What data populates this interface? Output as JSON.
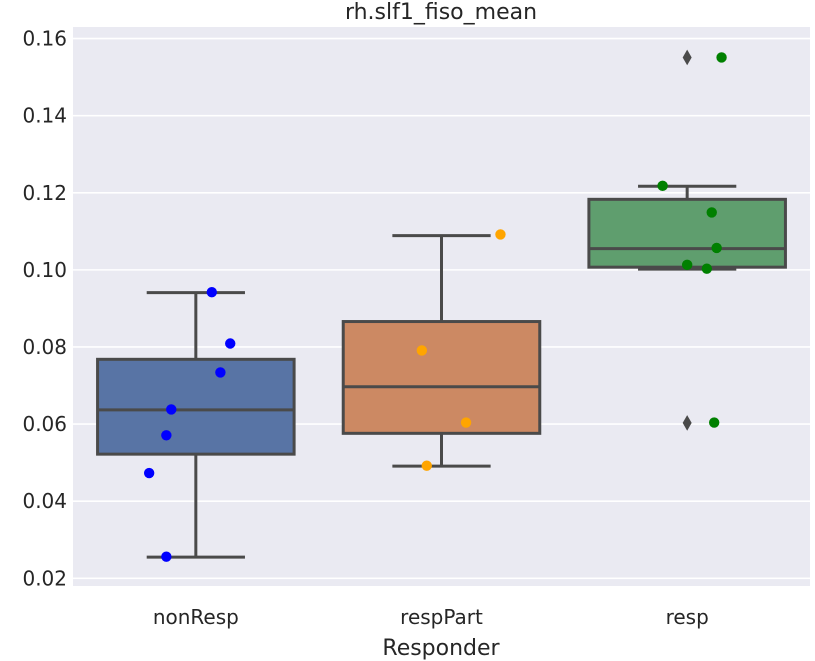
{
  "chart_data": {
    "type": "box",
    "title": "rh.slf1_fiso_mean",
    "xlabel": "Responder",
    "ylabel": "",
    "ylim": [
      0.018,
      0.163
    ],
    "yticks": [
      0.02,
      0.04,
      0.06,
      0.08,
      0.1,
      0.12,
      0.14,
      0.16
    ],
    "ytick_labels": [
      "0.02",
      "0.04",
      "0.06",
      "0.08",
      "0.10",
      "0.12",
      "0.14",
      "0.16"
    ],
    "grid": true,
    "legend": "none",
    "categories": [
      "nonResp",
      "respPart",
      "resp"
    ],
    "series": [
      {
        "category": "nonResp",
        "box_color": "#5874a5",
        "point_color": "#0000ff",
        "q1": 0.0522,
        "median": 0.0637,
        "q3": 0.0768,
        "whisker_low": 0.0255,
        "whisker_high": 0.0941,
        "fliers": [],
        "points": [
          {
            "x": 0.065,
            "y": 0.0942
          },
          {
            "x": 0.14,
            "y": 0.0809
          },
          {
            "x": 0.1,
            "y": 0.0734
          },
          {
            "x": -0.1,
            "y": 0.0638
          },
          {
            "x": -0.12,
            "y": 0.0571
          },
          {
            "x": -0.19,
            "y": 0.0473
          },
          {
            "x": -0.12,
            "y": 0.0256
          }
        ]
      },
      {
        "category": "respPart",
        "box_color": "#cc8963",
        "point_color": "#ffa500",
        "q1": 0.0576,
        "median": 0.0697,
        "q3": 0.0866,
        "whisker_low": 0.0491,
        "whisker_high": 0.1089,
        "fliers": [],
        "points": [
          {
            "x": 0.24,
            "y": 0.1092
          },
          {
            "x": -0.08,
            "y": 0.0791
          },
          {
            "x": 0.1,
            "y": 0.0604
          },
          {
            "x": -0.06,
            "y": 0.0492
          }
        ]
      },
      {
        "category": "resp",
        "box_color": "#5f9e6e",
        "point_color": "#008000",
        "q1": 0.1007,
        "median": 0.1055,
        "q3": 0.1183,
        "whisker_low": 0.1002,
        "whisker_high": 0.1217,
        "fliers": [
          0.1551,
          0.0603
        ],
        "points": [
          {
            "x": 0.14,
            "y": 0.1551
          },
          {
            "x": -0.1,
            "y": 0.1218
          },
          {
            "x": 0.1,
            "y": 0.1149
          },
          {
            "x": 0.12,
            "y": 0.1057
          },
          {
            "x": 0.0,
            "y": 0.1013
          },
          {
            "x": 0.08,
            "y": 0.1003
          },
          {
            "x": 0.11,
            "y": 0.0604
          }
        ]
      }
    ]
  }
}
